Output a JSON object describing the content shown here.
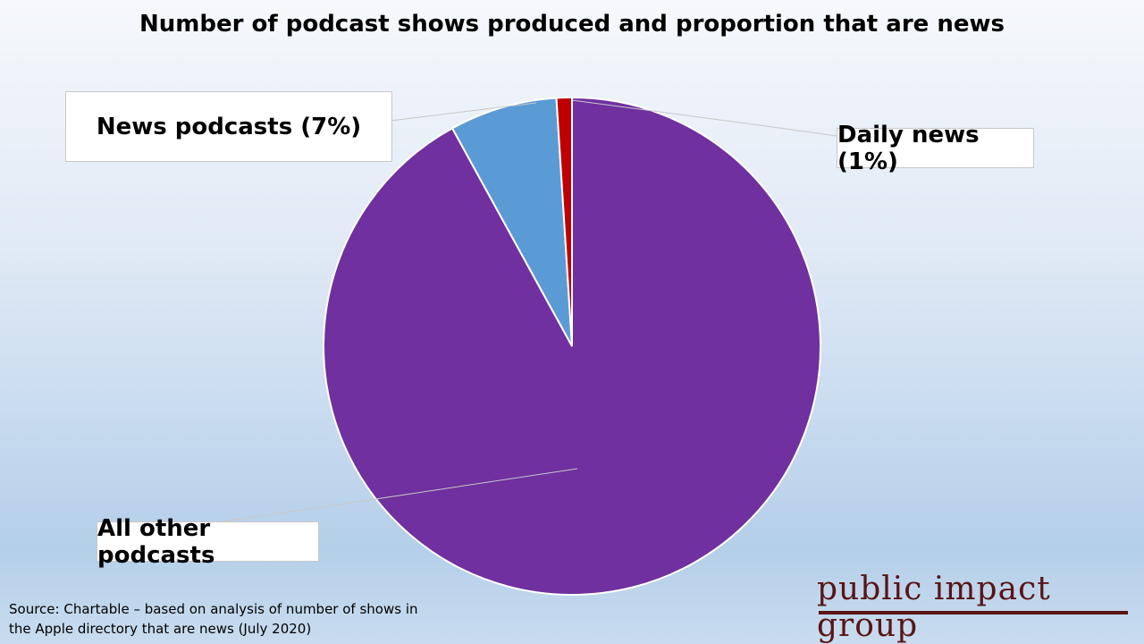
{
  "chart_data": {
    "type": "pie",
    "title": "Number of podcast shows produced and proportion that are news",
    "slices": [
      {
        "label": "All other podcasts",
        "value": 92,
        "color": "#70309f"
      },
      {
        "label": "News podcasts (7%)",
        "value": 7,
        "color": "#5b9bd5"
      },
      {
        "label": "Daily news (1%)",
        "value": 1,
        "color": "#c00000"
      }
    ],
    "start_angle_deg": 0,
    "direction": "counterclockwise-from-first-slice-end"
  },
  "source": "Source: Chartable – based on analysis of number of shows in the Apple directory that are news (July 2020)",
  "logo": "public impact group"
}
